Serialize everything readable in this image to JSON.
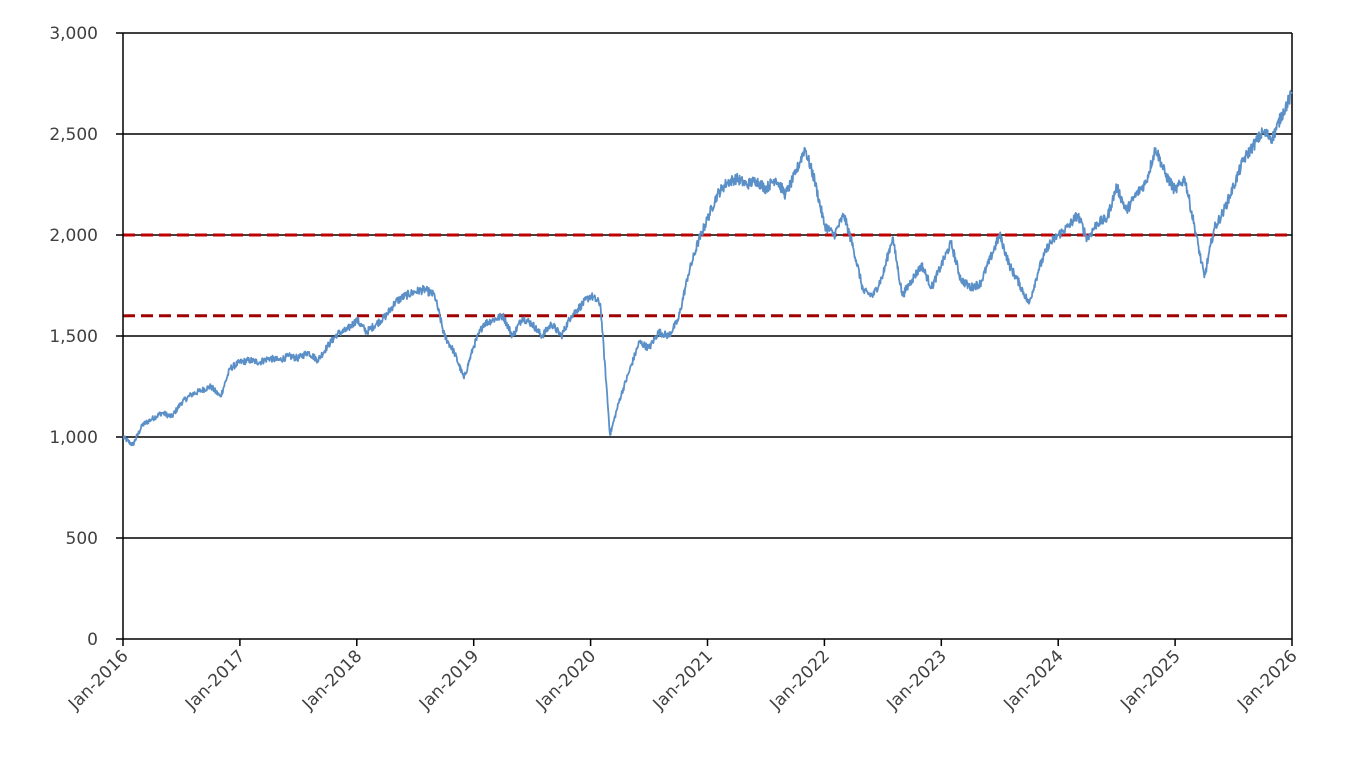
{
  "chart_data": {
    "type": "line",
    "title": "",
    "xlabel": "",
    "ylabel": "",
    "ylim": [
      0,
      3000
    ],
    "y_ticks": [
      0,
      500,
      1000,
      1500,
      2000,
      2500,
      3000
    ],
    "y_tick_labels": [
      "0",
      "500",
      "1,000",
      "1,500",
      "2,000",
      "2,500",
      "3,000"
    ],
    "x_range": [
      "2016-01",
      "2026-01"
    ],
    "x_tick_labels": [
      "Jan-2016",
      "Jan-2017",
      "Jan-2018",
      "Jan-2019",
      "Jan-2020",
      "Jan-2021",
      "Jan-2022",
      "Jan-2023",
      "Jan-2024",
      "Jan-2025",
      "Jan-2026"
    ],
    "grid": "horizontal",
    "series": [
      {
        "color": "#5b8fc7",
        "points": [
          [
            "2016-01",
            1000
          ],
          [
            "2016-02",
            960
          ],
          [
            "2016-03",
            1060
          ],
          [
            "2016-04",
            1090
          ],
          [
            "2016-05",
            1120
          ],
          [
            "2016-06",
            1100
          ],
          [
            "2016-07",
            1170
          ],
          [
            "2016-08",
            1210
          ],
          [
            "2016-09",
            1230
          ],
          [
            "2016-10",
            1250
          ],
          [
            "2016-11",
            1200
          ],
          [
            "2016-12",
            1340
          ],
          [
            "2017-01",
            1370
          ],
          [
            "2017-02",
            1380
          ],
          [
            "2017-03",
            1370
          ],
          [
            "2017-04",
            1390
          ],
          [
            "2017-05",
            1380
          ],
          [
            "2017-06",
            1400
          ],
          [
            "2017-07",
            1390
          ],
          [
            "2017-08",
            1420
          ],
          [
            "2017-09",
            1380
          ],
          [
            "2017-10",
            1450
          ],
          [
            "2017-11",
            1510
          ],
          [
            "2017-12",
            1530
          ],
          [
            "2018-01",
            1580
          ],
          [
            "2018-02",
            1520
          ],
          [
            "2018-03",
            1560
          ],
          [
            "2018-04",
            1600
          ],
          [
            "2018-05",
            1670
          ],
          [
            "2018-06",
            1700
          ],
          [
            "2018-07",
            1720
          ],
          [
            "2018-08",
            1730
          ],
          [
            "2018-09",
            1700
          ],
          [
            "2018-10",
            1500
          ],
          [
            "2018-11",
            1420
          ],
          [
            "2018-12",
            1290
          ],
          [
            "2019-01",
            1450
          ],
          [
            "2019-02",
            1560
          ],
          [
            "2019-03",
            1580
          ],
          [
            "2019-04",
            1600
          ],
          [
            "2019-05",
            1500
          ],
          [
            "2019-06",
            1590
          ],
          [
            "2019-07",
            1560
          ],
          [
            "2019-08",
            1500
          ],
          [
            "2019-09",
            1560
          ],
          [
            "2019-10",
            1500
          ],
          [
            "2019-11",
            1600
          ],
          [
            "2019-12",
            1650
          ],
          [
            "2020-01",
            1700
          ],
          [
            "2020-02",
            1660
          ],
          [
            "2020-03",
            1010
          ],
          [
            "2020-04",
            1190
          ],
          [
            "2020-05",
            1330
          ],
          [
            "2020-06",
            1470
          ],
          [
            "2020-07",
            1440
          ],
          [
            "2020-08",
            1520
          ],
          [
            "2020-09",
            1500
          ],
          [
            "2020-10",
            1580
          ],
          [
            "2020-11",
            1800
          ],
          [
            "2020-12",
            1960
          ],
          [
            "2021-01",
            2080
          ],
          [
            "2021-02",
            2200
          ],
          [
            "2021-03",
            2260
          ],
          [
            "2021-04",
            2280
          ],
          [
            "2021-05",
            2250
          ],
          [
            "2021-06",
            2270
          ],
          [
            "2021-07",
            2230
          ],
          [
            "2021-08",
            2280
          ],
          [
            "2021-09",
            2200
          ],
          [
            "2021-10",
            2300
          ],
          [
            "2021-11",
            2430
          ],
          [
            "2021-12",
            2270
          ],
          [
            "2022-01",
            2050
          ],
          [
            "2022-02",
            2000
          ],
          [
            "2022-03",
            2100
          ],
          [
            "2022-04",
            1930
          ],
          [
            "2022-05",
            1720
          ],
          [
            "2022-06",
            1700
          ],
          [
            "2022-07",
            1800
          ],
          [
            "2022-08",
            1990
          ],
          [
            "2022-09",
            1700
          ],
          [
            "2022-10",
            1780
          ],
          [
            "2022-11",
            1850
          ],
          [
            "2022-12",
            1740
          ],
          [
            "2023-01",
            1850
          ],
          [
            "2023-02",
            1960
          ],
          [
            "2023-03",
            1780
          ],
          [
            "2023-04",
            1740
          ],
          [
            "2023-05",
            1760
          ],
          [
            "2023-06",
            1880
          ],
          [
            "2023-07",
            2000
          ],
          [
            "2023-08",
            1850
          ],
          [
            "2023-09",
            1760
          ],
          [
            "2023-10",
            1660
          ],
          [
            "2023-11",
            1830
          ],
          [
            "2023-12",
            1950
          ],
          [
            "2024-01",
            2000
          ],
          [
            "2024-02",
            2040
          ],
          [
            "2024-03",
            2100
          ],
          [
            "2024-04",
            1980
          ],
          [
            "2024-05",
            2060
          ],
          [
            "2024-06",
            2080
          ],
          [
            "2024-07",
            2240
          ],
          [
            "2024-08",
            2120
          ],
          [
            "2024-09",
            2200
          ],
          [
            "2024-10",
            2260
          ],
          [
            "2024-11",
            2430
          ],
          [
            "2024-12",
            2300
          ],
          [
            "2025-01",
            2220
          ],
          [
            "2025-02",
            2280
          ],
          [
            "2025-03",
            2040
          ],
          [
            "2025-04",
            1790
          ],
          [
            "2025-05",
            2030
          ],
          [
            "2025-06",
            2120
          ],
          [
            "2025-07",
            2240
          ],
          [
            "2025-08",
            2370
          ],
          [
            "2025-09",
            2440
          ],
          [
            "2025-10",
            2510
          ],
          [
            "2025-11",
            2480
          ],
          [
            "2025-12",
            2600
          ],
          [
            "2026-01",
            2700
          ]
        ]
      }
    ],
    "reference_lines": [
      {
        "y": 2000,
        "color": "#c00000",
        "style": "dashed"
      },
      {
        "y": 1600,
        "color": "#a00000",
        "style": "dashed"
      }
    ]
  }
}
